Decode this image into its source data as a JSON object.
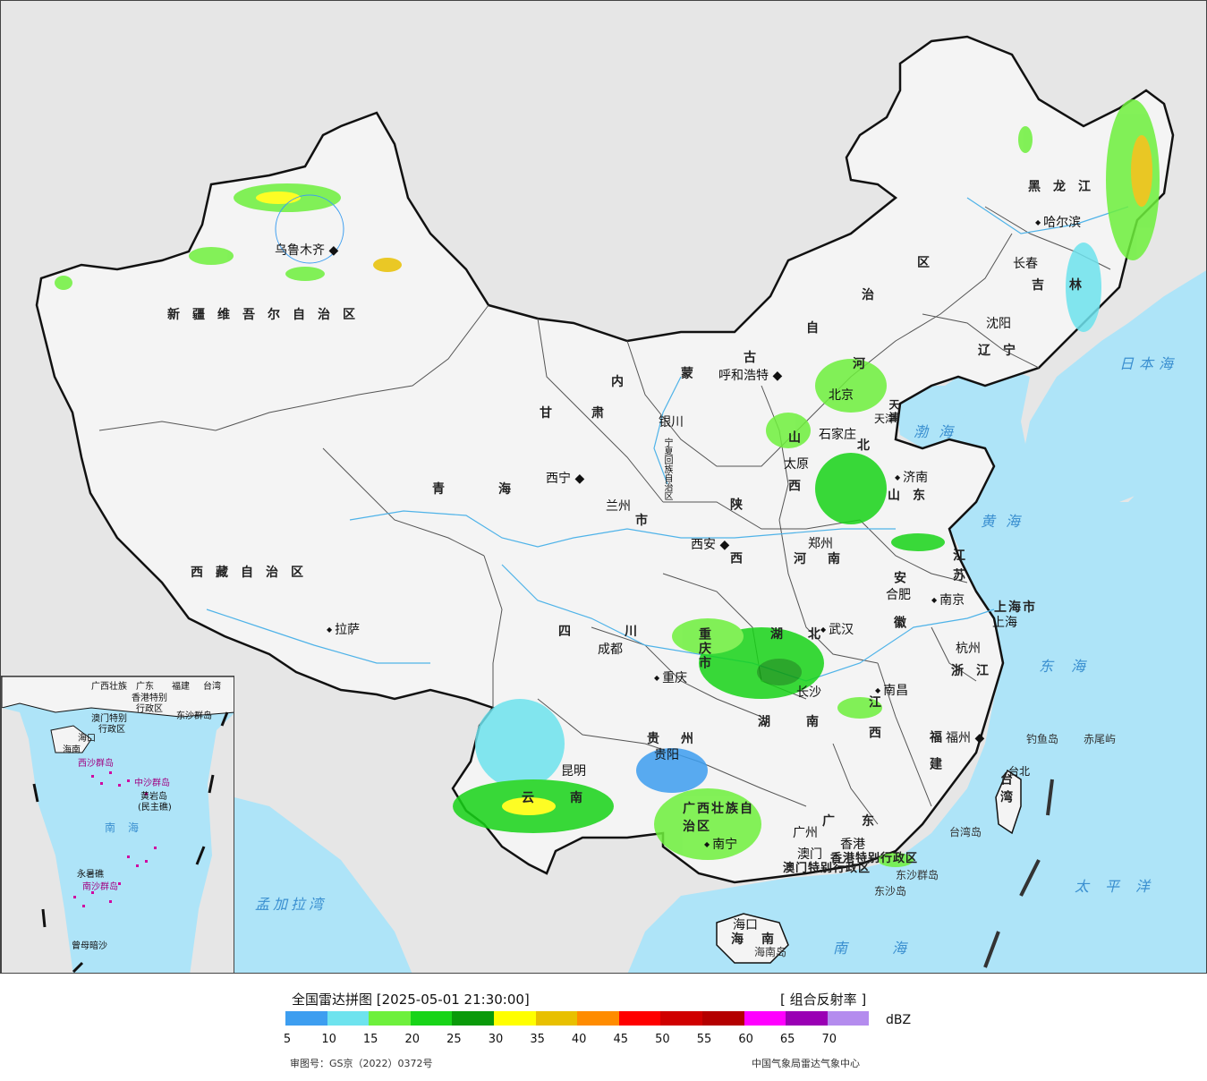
{
  "map": {
    "colors": {
      "ocean": "#aee4f8",
      "land": "#f2f2f2",
      "foreign": "#e6e6e6",
      "border": "#111111",
      "river": "#4fb3e8",
      "accent_sea_text": "#3a8fd0"
    },
    "regions": {
      "xinjiang": "新疆维吾尔自治区",
      "xizang": "西藏自治区",
      "qinghai": "青海",
      "gansu": "甘肃",
      "neimenggu_nei": "内",
      "neimenggu_meng": "蒙",
      "neimenggu_gu": "古",
      "neimenggu_zi": "自",
      "neimenggu_zhi": "治",
      "neimenggu_qu": "区",
      "heilongjiang": "黑龙江",
      "jilin": "吉林",
      "liaoning": "辽宁",
      "hebei_he": "河",
      "hebei_bei": "北",
      "shanxi": "山西",
      "shandong": "山东",
      "henan": "河南",
      "shaanxi": "陕西",
      "sichuan": "四川",
      "chongqing": "重庆市",
      "hubei": "湖北",
      "hunan": "湖南",
      "anhui": "安徽",
      "jiangsu": "江苏",
      "zhejiang": "浙江",
      "jiangxi": "江西",
      "fujian": "福建",
      "guizhou": "贵州",
      "yunnan": "云南",
      "guangxi": "广西壮族自治区",
      "guangdong": "广东",
      "hainan": "海南",
      "taiwan": "台湾",
      "shanghai": "上海市",
      "tianjin": "天津",
      "ningxia": "宁夏回族自治区",
      "gansu_shi": "市",
      "hongkong": "香港特别行政区",
      "macao": "澳门特别行政区"
    },
    "cities": {
      "wulumuqi": "乌鲁木齐",
      "lasa": "拉萨",
      "xining": "西宁",
      "lanzhou": "兰州",
      "yinchuan": "银川",
      "huhehaote": "呼和浩特",
      "haerbin": "哈尔滨",
      "changchun": "长春",
      "shenyang": "沈阳",
      "beijing": "北京",
      "tianjin_city": "天津",
      "shijiazhuang": "石家庄",
      "taiyuan": "太原",
      "jinan": "济南",
      "zhengzhou": "郑州",
      "xian": "西安",
      "chengdu": "成都",
      "chongqing_city": "重庆",
      "wuhan": "武汉",
      "hefei": "合肥",
      "nanjing": "南京",
      "shanghai_city": "上海",
      "hangzhou": "杭州",
      "changsha": "长沙",
      "nanchang": "南昌",
      "fuzhou": "福州",
      "guiyang": "贵阳",
      "kunming": "昆明",
      "nanning": "南宁",
      "guangzhou": "广州",
      "aomen": "澳门",
      "xianggang": "香港",
      "haikou": "海口",
      "taibei": "台北"
    },
    "seas": {
      "riben": "日本海",
      "bohai": "渤海",
      "huanghai": "黄海",
      "donghai": "东海",
      "taiping": "太平洋",
      "nanhai": "南海",
      "mengjiala": "孟加拉湾"
    },
    "islands": {
      "diaoyu": "钓鱼岛",
      "chiwei": "赤尾屿",
      "dongsha": "东沙群岛",
      "dongsha_dao": "东沙岛",
      "taiwan_dao": "台湾岛",
      "hainan_dao": "海南岛"
    },
    "inset": {
      "labels": [
        "广西壮族",
        "广东",
        "福建",
        "台湾",
        "香港特别",
        "行政区",
        "澳门特别",
        "行政区",
        "东沙群岛",
        "海口",
        "海南",
        "西沙群岛",
        "中沙群岛",
        "黄岩岛",
        "(民主礁)",
        "南海",
        "永暑礁",
        "南沙群岛",
        "曾母暗沙"
      ]
    }
  },
  "legend": {
    "title": "全国雷达拼图 [2025-05-01 21:30:00]",
    "product": "[ 组合反射率 ]",
    "unit": "dBZ",
    "colors": [
      "#3d9ef0",
      "#6ee3ee",
      "#6ef03c",
      "#18d418",
      "#0a9a0a",
      "#ffff00",
      "#e8c000",
      "#ff8c00",
      "#ff0000",
      "#d00000",
      "#b40000",
      "#ff00ff",
      "#9a00b4",
      "#b48cee"
    ],
    "ticks": [
      "5",
      "10",
      "15",
      "20",
      "25",
      "30",
      "35",
      "40",
      "45",
      "50",
      "55",
      "60",
      "65",
      "70"
    ],
    "approval": "审图号：GS京（2022）0372号",
    "source": "中国气象局雷达气象中心"
  }
}
